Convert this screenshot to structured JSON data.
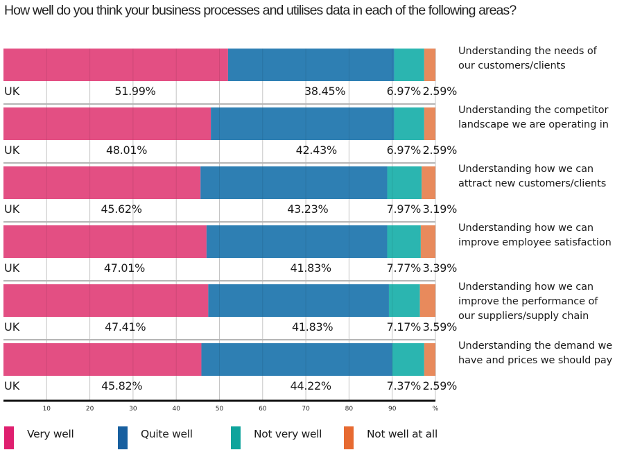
{
  "chart_data": {
    "type": "bar",
    "orientation": "horizontal",
    "stacked": true,
    "title": "How well do you think your business processes and utilises data in each of the following areas?",
    "xlabel": "%",
    "xlim": [
      0,
      100
    ],
    "x_ticks": [
      "10",
      "20",
      "30",
      "40",
      "50",
      "60",
      "70",
      "80",
      "90",
      "%"
    ],
    "grid": true,
    "legend_position": "bottom",
    "row_label": "UK",
    "categories": [
      [
        "Understanding the needs of",
        "our customers/clients"
      ],
      [
        "Understanding the competitor",
        "landscape we are operating in"
      ],
      [
        "Understanding how we can",
        "attract new customers/clients"
      ],
      [
        "Understanding how we can",
        "improve employee satisfaction"
      ],
      [
        "Understanding how we can",
        "improve the performance of",
        "our suppliers/supply chain"
      ],
      [
        "Understanding the demand we",
        "have and prices we should pay"
      ]
    ],
    "series": [
      {
        "name": "Very well",
        "color": "#e34f83",
        "legend_color": "#df1f6f",
        "values": [
          51.99,
          48.01,
          45.62,
          47.01,
          47.41,
          45.82
        ],
        "labels": [
          "51.99%",
          "48.01%",
          "45.62%",
          "47.01%",
          "47.41%",
          "45.82%"
        ]
      },
      {
        "name": "Quite well",
        "color": "#2e7fb3",
        "legend_color": "#175f9f",
        "values": [
          38.45,
          42.43,
          43.23,
          41.83,
          41.83,
          44.22
        ],
        "labels": [
          "38.45%",
          "42.43%",
          "43.23%",
          "41.83%",
          "41.83%",
          "44.22%"
        ]
      },
      {
        "name": "Not very well",
        "color": "#2bb5b0",
        "legend_color": "#0ea49c",
        "values": [
          6.97,
          6.97,
          7.97,
          7.77,
          7.17,
          7.37
        ],
        "labels": [
          "6.97%",
          "6.97%",
          "7.97%",
          "7.77%",
          "7.17%",
          "7.37%"
        ]
      },
      {
        "name": "Not well at all",
        "color": "#e88a5c",
        "legend_color": "#e76a31",
        "values": [
          2.59,
          2.59,
          3.19,
          3.39,
          3.59,
          2.59
        ],
        "labels": [
          "2.59%",
          "2.59%",
          "3.19%",
          "3.39%",
          "3.59%",
          "2.59%"
        ]
      }
    ]
  }
}
